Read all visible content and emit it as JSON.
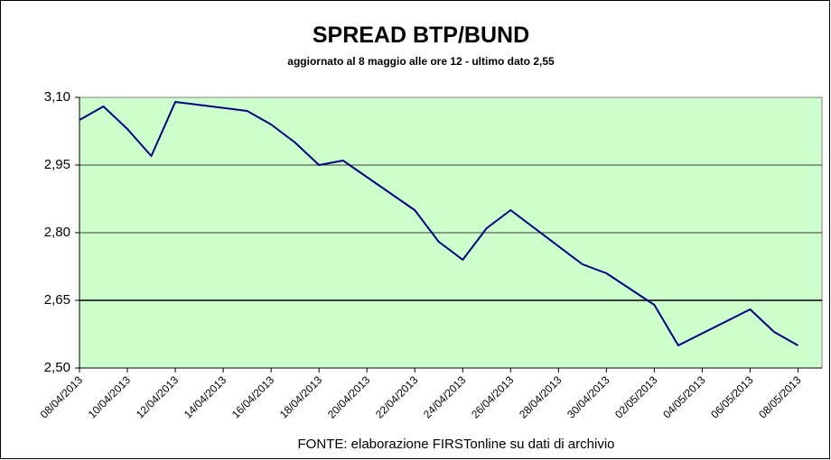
{
  "chart_data": {
    "type": "line",
    "title": "SPREAD  BTP/BUND",
    "subtitle": "aggiornato al 8 maggio alle ore 12 -  ultimo dato 2,55",
    "source": "FONTE: elaborazione FIRSTonline su dati di archivio",
    "x": [
      "08/04/2013",
      "09/04/2013",
      "10/04/2013",
      "11/04/2013",
      "12/04/2013",
      "15/04/2013",
      "16/04/2013",
      "17/04/2013",
      "18/04/2013",
      "19/04/2013",
      "22/04/2013",
      "23/04/2013",
      "24/04/2013",
      "25/04/2013",
      "26/04/2013",
      "29/04/2013",
      "30/04/2013",
      "02/05/2013",
      "03/05/2013",
      "06/05/2013",
      "07/05/2013",
      "08/05/2013"
    ],
    "series": [
      {
        "name": "Spread",
        "color": "#000080",
        "values": [
          3.05,
          3.08,
          3.03,
          2.97,
          3.09,
          3.07,
          3.04,
          3.0,
          2.95,
          2.96,
          2.85,
          2.78,
          2.74,
          2.81,
          2.85,
          2.73,
          2.71,
          2.64,
          2.55,
          2.63,
          2.58,
          2.55
        ]
      }
    ],
    "xlim": [
      "08/04/2013",
      "09/05/2013"
    ],
    "xticks": [
      "08/04/2013",
      "10/04/2013",
      "12/04/2013",
      "14/04/2013",
      "16/04/2013",
      "18/04/2013",
      "20/04/2013",
      "22/04/2013",
      "24/04/2013",
      "26/04/2013",
      "28/04/2013",
      "30/04/2013",
      "02/05/2013",
      "04/05/2013",
      "06/05/2013",
      "08/05/2013"
    ],
    "ylim": [
      2.5,
      3.1
    ],
    "yticks": [
      {
        "value": 2.5,
        "label": "2,50"
      },
      {
        "value": 2.65,
        "label": "2,65"
      },
      {
        "value": 2.8,
        "label": "2,80"
      },
      {
        "value": 2.95,
        "label": "2,95"
      },
      {
        "value": 3.1,
        "label": "3,10"
      }
    ],
    "reference_line": 2.65,
    "grid": true,
    "plot_background": "#ccffcc"
  }
}
